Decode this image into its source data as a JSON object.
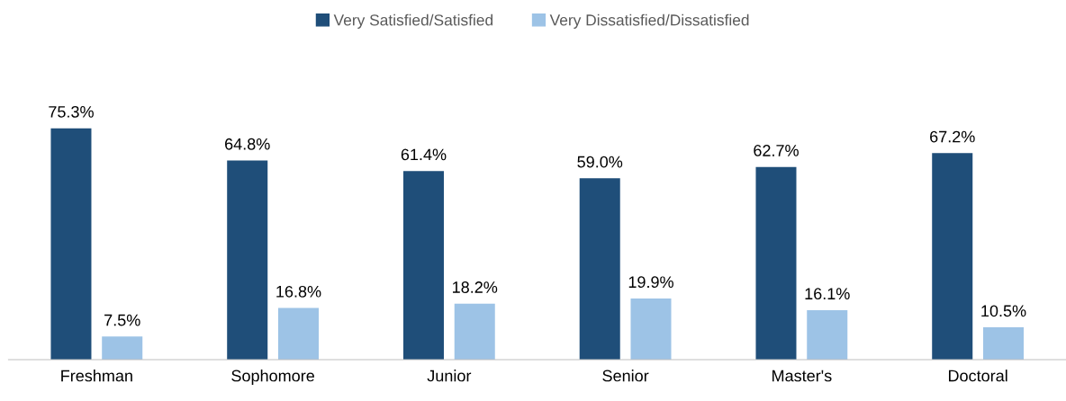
{
  "chart_data": {
    "type": "bar",
    "categories": [
      "Freshman",
      "Sophomore",
      "Junior",
      "Senior",
      "Master's",
      "Doctoral"
    ],
    "series": [
      {
        "name": "Very Satisfied/Satisfied",
        "color": "#1f4e79",
        "values": [
          75.3,
          64.8,
          61.4,
          59.0,
          62.7,
          67.2
        ],
        "value_labels": [
          "75.3%",
          "64.8%",
          "61.4%",
          "59.0%",
          "62.7%",
          "67.2%"
        ]
      },
      {
        "name": "Very Dissatisfied/Dissatisfied",
        "color": "#9dc3e6",
        "values": [
          7.5,
          16.8,
          18.2,
          19.9,
          16.1,
          10.5
        ],
        "value_labels": [
          "7.5%",
          "16.8%",
          "18.2%",
          "19.9%",
          "16.1%",
          "10.5%"
        ]
      }
    ],
    "legend": "top",
    "grid": false,
    "tick_labels": "x"
  }
}
